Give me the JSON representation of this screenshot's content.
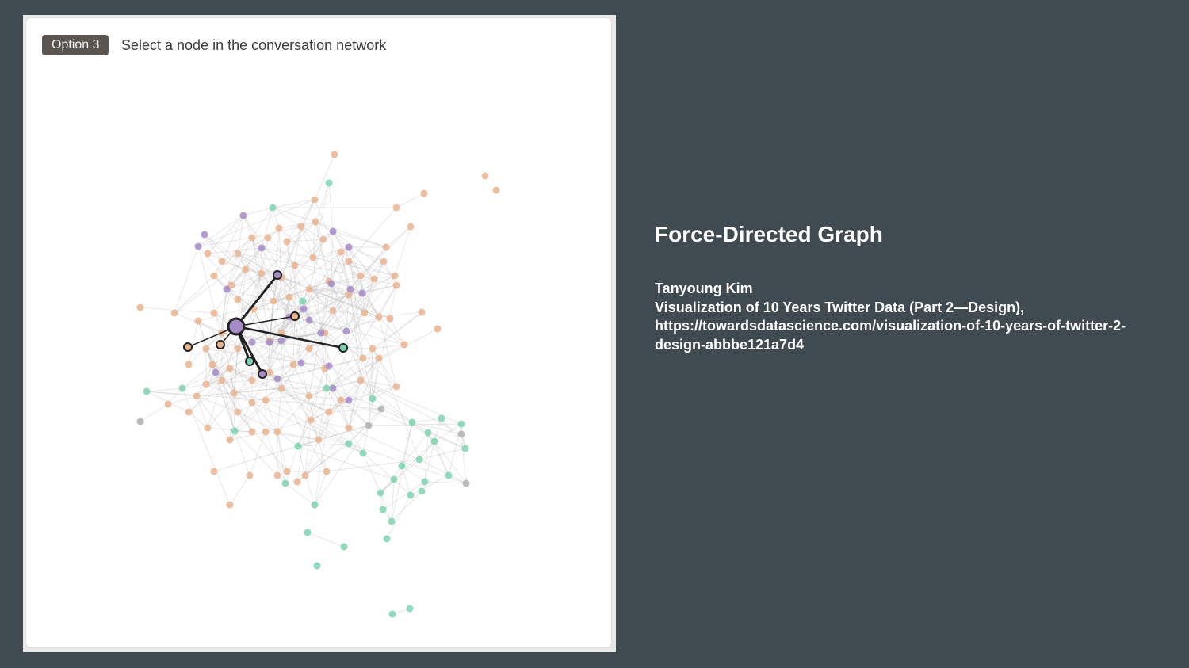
{
  "panel": {
    "option_badge": "Option 3",
    "instruction": "Select a node in the conversation network"
  },
  "info": {
    "title": "Force-Directed Graph",
    "author": "Tanyoung Kim",
    "reference": "Visualization of 10 Years Twitter Data (Part 2—Design),",
    "url": "https://towardsdatascience.com/visualization-of-10-years-of-twitter-2-design-abbbe121a7d4"
  },
  "colors": {
    "orange": "#e9b48f",
    "purple": "#a48bc8",
    "green": "#7fd4b0",
    "gray": "#b0b0b0",
    "selected_stroke": "#222222"
  },
  "graph": {
    "selected_node": "hub",
    "node_categories": [
      "orange",
      "purple",
      "green",
      "gray"
    ]
  }
}
